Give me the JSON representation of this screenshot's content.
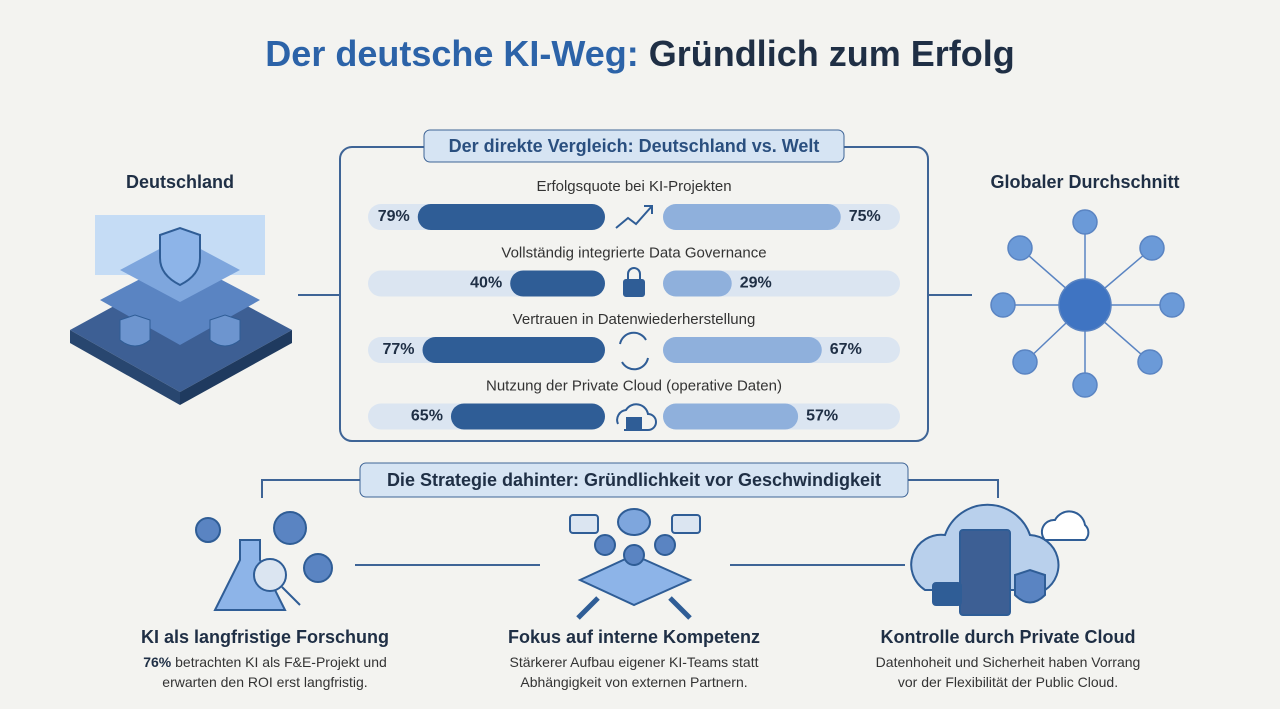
{
  "header": {
    "title_lead": "Der deutsche KI-Weg:",
    "title_rest": "Gründlich zum Erfolg"
  },
  "chart_data": {
    "type": "diverging-bar",
    "title": "Der direkte Vergleich: Deutschland vs. Welt",
    "categories": [
      "Erfolgsquote bei KI-Projekten",
      "Vollständig integrierte Data Governance",
      "Vertrauen in Datenwiederherstellung",
      "Nutzung der Private Cloud (operative Daten)"
    ],
    "series": [
      {
        "name": "Deutschland",
        "color": "#2f5d96",
        "values": [
          79,
          40,
          77,
          65
        ],
        "value_labels": [
          "79%",
          "40%",
          "77%",
          "65%"
        ]
      },
      {
        "name": "Globaler Durchschnitt",
        "color": "#8fb0dc",
        "values": [
          75,
          29,
          67,
          57
        ],
        "value_labels": [
          "75%",
          "29%",
          "67%",
          "57%"
        ]
      }
    ],
    "xlim": [
      0,
      100
    ]
  },
  "strategy": {
    "title": "Die Strategie dahinter: Gründlichkeit vor Geschwindigkeit",
    "columns": [
      {
        "heading": "KI als langfristige Forschung",
        "highlight": "76%",
        "lines": [
          " betrachten KI als F&E-Projekt und",
          "erwarten den ROI erst langfristig."
        ]
      },
      {
        "heading": "Fokus auf interne Kompetenz",
        "lines": [
          "Stärkerer Aufbau eigener KI-Teams statt",
          "Abhängigkeit von externen Partnern."
        ]
      },
      {
        "heading": "Kontrolle durch Private Cloud",
        "lines": [
          "Datenhoheit und Sicherheit haben Vorrang",
          "vor der Flexibilität der Public Cloud."
        ]
      }
    ]
  }
}
